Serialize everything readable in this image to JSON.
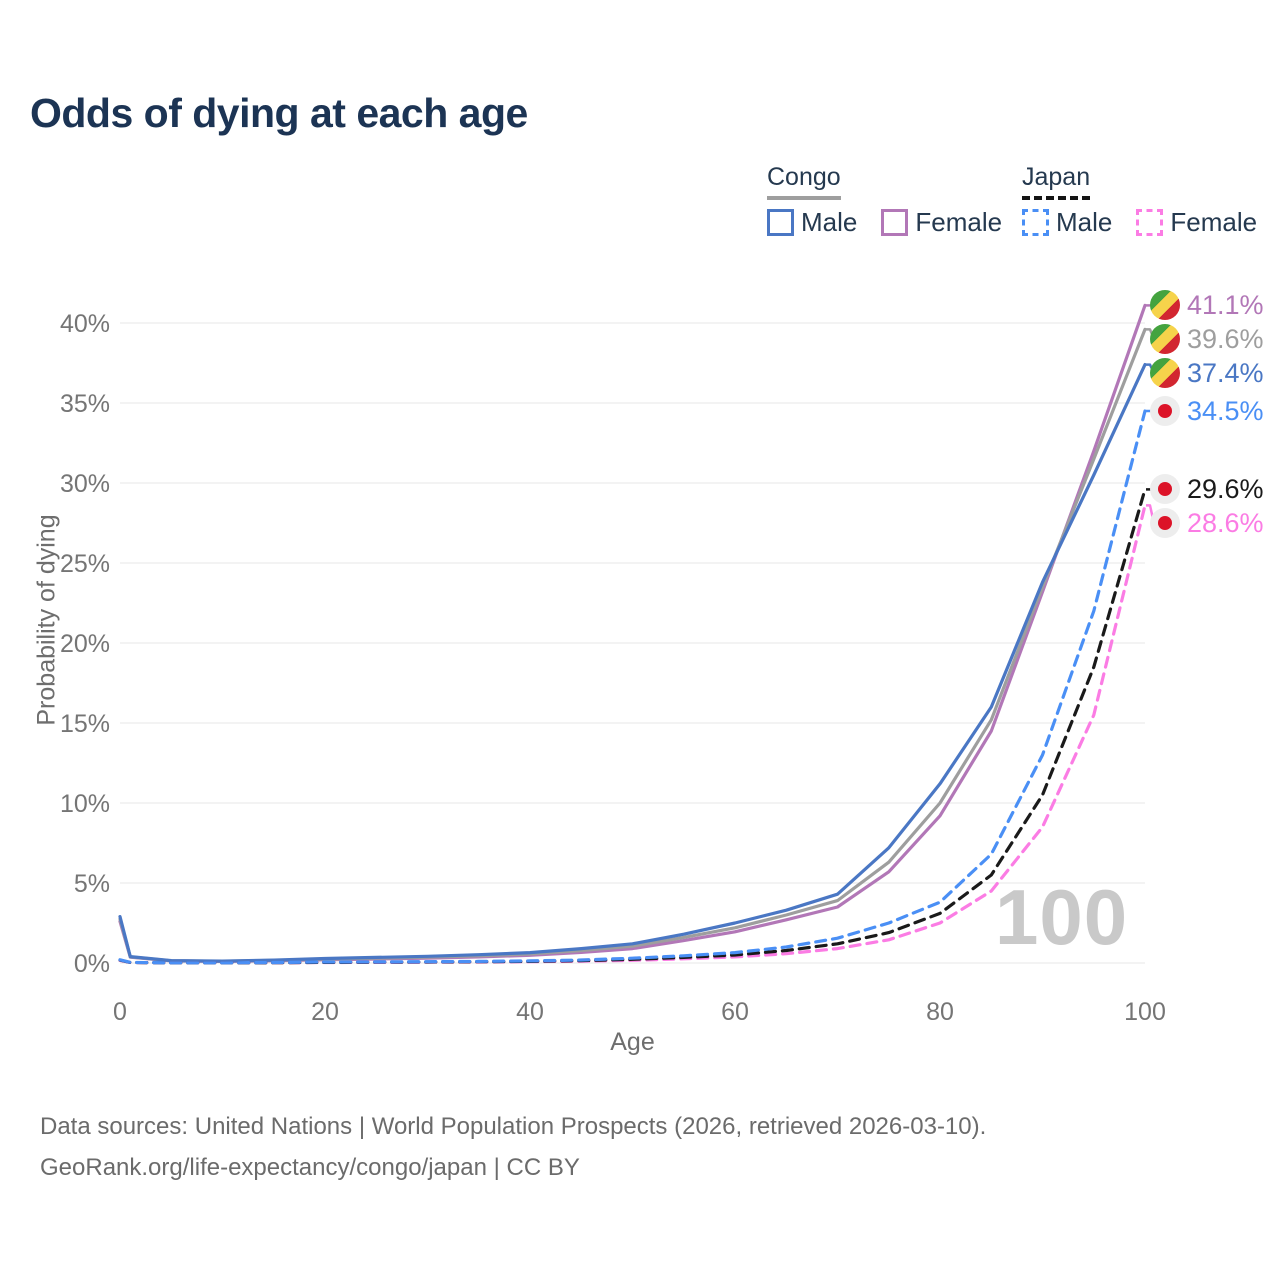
{
  "title": "Odds of dying at each age",
  "watermark": "100",
  "legend": {
    "groups": [
      {
        "label": "Congo",
        "line_style": "solid",
        "underline_color": "#9e9e9e",
        "items": [
          {
            "label": "Male",
            "color": "#4a77c4"
          },
          {
            "label": "Female",
            "color": "#b277b7"
          }
        ]
      },
      {
        "label": "Japan",
        "line_style": "dashed",
        "underline_color": "#141414",
        "items": [
          {
            "label": "Male",
            "color": "#4a8ff5"
          },
          {
            "label": "Female",
            "color": "#fb7ce4"
          }
        ]
      }
    ]
  },
  "footer": {
    "line1": "Data sources: United Nations | World Population Prospects (2026, retrieved 2026-03-10).",
    "line2": "GeoRank.org/life-expectancy/congo/japan | CC BY"
  },
  "chart_data": {
    "type": "line",
    "title": "Odds of dying at each age",
    "xlabel": "Age",
    "ylabel": "Probability of dying",
    "xlim": [
      0,
      100
    ],
    "ylim_percent": [
      0,
      42
    ],
    "grid": "horizontal",
    "legend_position": "top-right",
    "watermark": "100",
    "x": [
      0,
      1,
      5,
      10,
      15,
      20,
      25,
      30,
      35,
      40,
      45,
      50,
      55,
      60,
      65,
      70,
      75,
      80,
      85,
      90,
      95,
      100
    ],
    "xticks": [
      {
        "v": 0,
        "label": "0"
      },
      {
        "v": 20,
        "label": "20"
      },
      {
        "v": 40,
        "label": "40"
      },
      {
        "v": 60,
        "label": "60"
      },
      {
        "v": 80,
        "label": "80"
      },
      {
        "v": 100,
        "label": "100"
      }
    ],
    "yticks": [
      {
        "v": 0,
        "label": "0%"
      },
      {
        "v": 5,
        "label": "5%"
      },
      {
        "v": 10,
        "label": "10%"
      },
      {
        "v": 15,
        "label": "15%"
      },
      {
        "v": 20,
        "label": "20%"
      },
      {
        "v": 25,
        "label": "25%"
      },
      {
        "v": 30,
        "label": "30%"
      },
      {
        "v": 35,
        "label": "35%"
      },
      {
        "v": 40,
        "label": "40%"
      }
    ],
    "series": [
      {
        "id": "congo-female",
        "name": "Congo Female",
        "country": "Congo",
        "sex": "Female",
        "color": "#b277b7",
        "dash": null,
        "flag": "congo",
        "end_label": "41.1%",
        "values_percent": [
          2.6,
          0.36,
          0.13,
          0.1,
          0.14,
          0.2,
          0.25,
          0.3,
          0.38,
          0.48,
          0.66,
          0.9,
          1.4,
          1.95,
          2.7,
          3.5,
          5.7,
          9.2,
          14.5,
          23.2,
          32.0,
          41.1
        ]
      },
      {
        "id": "congo-both",
        "name": "Congo Both sexes",
        "country": "Congo",
        "sex": "Both",
        "color": "#9e9e9e",
        "dash": null,
        "flag": "congo",
        "end_label": "39.6%",
        "values_percent": [
          2.75,
          0.38,
          0.14,
          0.11,
          0.16,
          0.24,
          0.3,
          0.36,
          0.45,
          0.56,
          0.78,
          1.05,
          1.6,
          2.2,
          3.0,
          3.9,
          6.3,
          10.0,
          15.2,
          23.5,
          31.5,
          39.6
        ]
      },
      {
        "id": "congo-male",
        "name": "Congo Male",
        "country": "Congo",
        "sex": "Male",
        "color": "#4a77c4",
        "dash": null,
        "flag": "congo",
        "end_label": "37.4%",
        "values_percent": [
          2.9,
          0.4,
          0.15,
          0.12,
          0.18,
          0.28,
          0.35,
          0.42,
          0.52,
          0.65,
          0.9,
          1.2,
          1.8,
          2.5,
          3.3,
          4.3,
          7.2,
          11.2,
          16.0,
          23.8,
          30.5,
          37.4
        ]
      },
      {
        "id": "japan-female",
        "name": "Japan Female",
        "country": "Japan",
        "sex": "Female",
        "color": "#fb7ce4",
        "dash": "10 7",
        "flag": "japan",
        "end_label": "28.6%",
        "values_percent": [
          0.16,
          0.03,
          0.01,
          0.01,
          0.02,
          0.03,
          0.04,
          0.05,
          0.06,
          0.08,
          0.11,
          0.17,
          0.26,
          0.38,
          0.58,
          0.9,
          1.45,
          2.5,
          4.5,
          8.5,
          15.5,
          28.6
        ]
      },
      {
        "id": "japan-both",
        "name": "Japan Both sexes",
        "country": "Japan",
        "sex": "Both",
        "color": "#1a1a1a",
        "dash": "10 7",
        "flag": "japan",
        "end_label": "29.6%",
        "values_percent": [
          0.18,
          0.03,
          0.01,
          0.01,
          0.02,
          0.04,
          0.05,
          0.06,
          0.08,
          0.1,
          0.15,
          0.23,
          0.35,
          0.5,
          0.78,
          1.2,
          1.9,
          3.1,
          5.5,
          10.5,
          18.5,
          29.6
        ]
      },
      {
        "id": "japan-male",
        "name": "Japan Male",
        "country": "Japan",
        "sex": "Male",
        "color": "#4a8ff5",
        "dash": "10 7",
        "flag": "japan",
        "end_label": "34.5%",
        "values_percent": [
          0.2,
          0.04,
          0.01,
          0.01,
          0.03,
          0.06,
          0.07,
          0.08,
          0.1,
          0.13,
          0.19,
          0.3,
          0.45,
          0.65,
          1.0,
          1.55,
          2.5,
          3.8,
          6.8,
          13.0,
          22.0,
          34.5
        ]
      }
    ]
  }
}
